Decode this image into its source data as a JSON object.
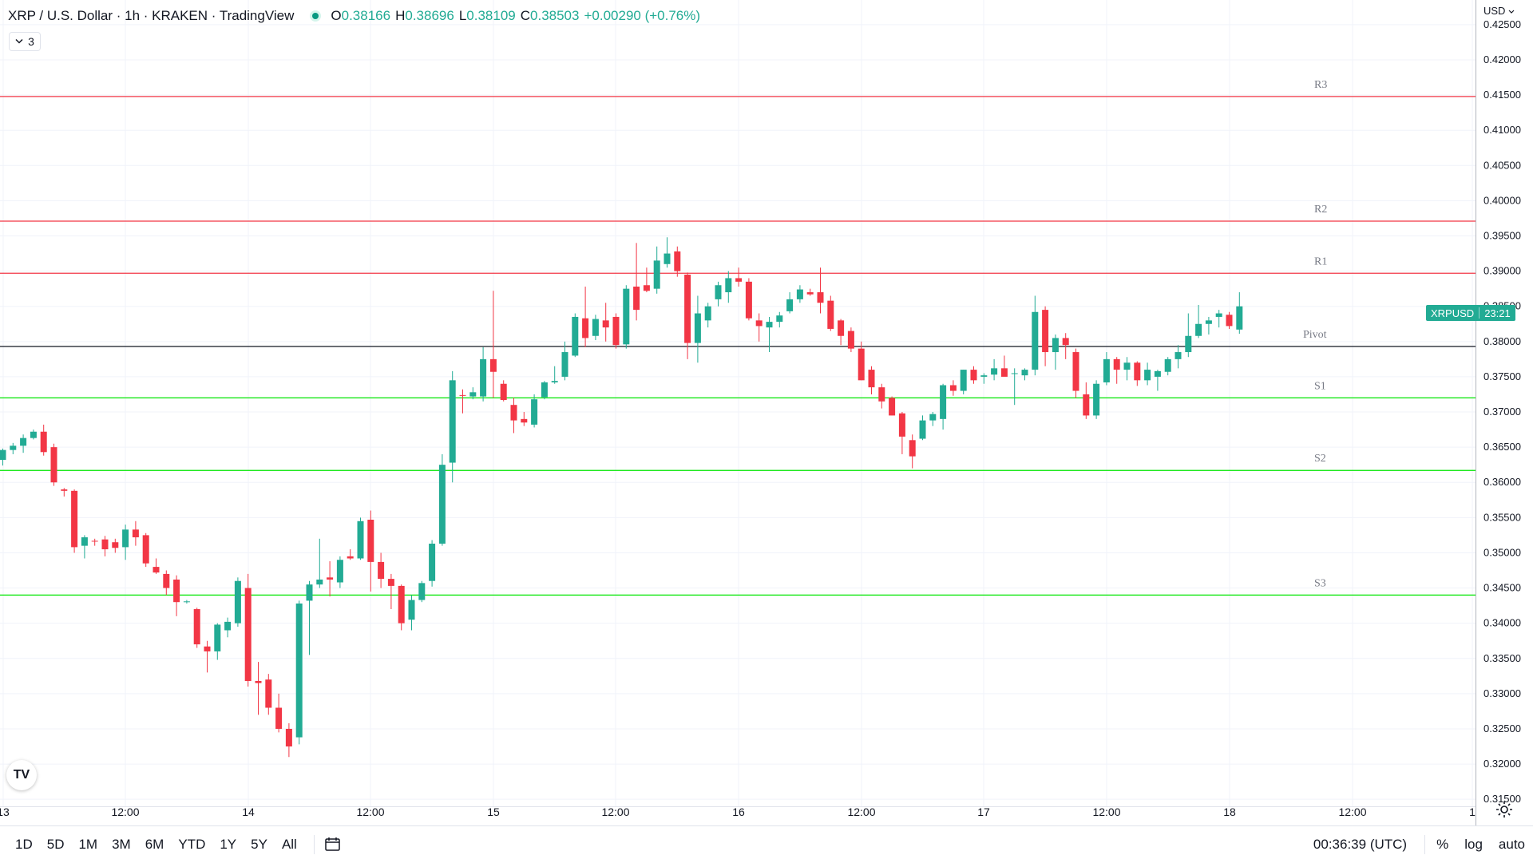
{
  "legend": {
    "symbol": "XRP / U.S. Dollar · 1h · KRAKEN · TradingView",
    "o_label": "O",
    "o_value": "0.38166",
    "h_label": "H",
    "h_value": "0.38696",
    "l_label": "L",
    "l_value": "0.38109",
    "c_label": "C",
    "c_value": "0.38503",
    "change": "+0.00290 (+0.76%)",
    "indicators_count": "3"
  },
  "price_scale": {
    "currency": "USD",
    "currency_icon": "chevron-down-icon"
  },
  "last_price_badge": {
    "symbol": "XRPUSD",
    "countdown": "23:21"
  },
  "colors": {
    "up": "#22ab94",
    "down": "#f23645",
    "grid": "#f0f3fa",
    "resistance": "#f23645",
    "support": "#00e600",
    "pivot": "#131722",
    "text": "#131722",
    "muted": "#787b86"
  },
  "chart_data": {
    "type": "candlestick",
    "symbol": "XRPUSD",
    "interval": "1h",
    "exchange": "KRAKEN",
    "y_axis": {
      "ylim": [
        0.314,
        0.4285
      ],
      "ticks": [
        "0.42500",
        "0.42000",
        "0.41500",
        "0.41000",
        "0.40500",
        "0.40000",
        "0.39500",
        "0.39000",
        "0.38500",
        "0.38000",
        "0.37500",
        "0.37000",
        "0.36500",
        "0.36000",
        "0.35500",
        "0.35000",
        "0.34500",
        "0.34000",
        "0.33500",
        "0.33000",
        "0.32500",
        "0.32000",
        "0.31500"
      ]
    },
    "x_axis": {
      "ticks": [
        "13",
        "12:00",
        "14",
        "12:00",
        "15",
        "12:00",
        "16",
        "12:00",
        "17",
        "12:00",
        "18",
        "12:00",
        "1"
      ]
    },
    "levels": [
      {
        "label": "R3",
        "value": 0.4148,
        "kind": "resistance"
      },
      {
        "label": "R2",
        "value": 0.3971,
        "kind": "resistance"
      },
      {
        "label": "R1",
        "value": 0.3897,
        "kind": "resistance"
      },
      {
        "label": "Pivot",
        "value": 0.3793,
        "kind": "pivot"
      },
      {
        "label": "S1",
        "value": 0.372,
        "kind": "support"
      },
      {
        "label": "S2",
        "value": 0.3617,
        "kind": "support"
      },
      {
        "label": "S3",
        "value": 0.344,
        "kind": "support"
      }
    ],
    "candles": [
      [
        0.3632,
        0.3648,
        0.3624,
        0.3646
      ],
      [
        0.3646,
        0.3656,
        0.364,
        0.3652
      ],
      [
        0.3652,
        0.3668,
        0.3642,
        0.3663
      ],
      [
        0.3663,
        0.3675,
        0.3661,
        0.3672
      ],
      [
        0.3672,
        0.3682,
        0.3638,
        0.3643
      ],
      [
        0.365,
        0.3655,
        0.3595,
        0.36
      ],
      [
        0.359,
        0.3592,
        0.358,
        0.3588
      ],
      [
        0.3588,
        0.359,
        0.35,
        0.3508
      ],
      [
        0.351,
        0.3525,
        0.3492,
        0.3522
      ],
      [
        0.3517,
        0.352,
        0.351,
        0.3516
      ],
      [
        0.3519,
        0.3524,
        0.3495,
        0.3505
      ],
      [
        0.3515,
        0.352,
        0.35,
        0.3507
      ],
      [
        0.3508,
        0.354,
        0.349,
        0.3533
      ],
      [
        0.3533,
        0.3545,
        0.351,
        0.3522
      ],
      [
        0.3525,
        0.3528,
        0.348,
        0.3485
      ],
      [
        0.348,
        0.3492,
        0.347,
        0.3472
      ],
      [
        0.347,
        0.3475,
        0.344,
        0.345
      ],
      [
        0.3462,
        0.3468,
        0.341,
        0.343
      ],
      [
        0.343,
        0.3433,
        0.3428,
        0.3431
      ],
      [
        0.342,
        0.3422,
        0.3365,
        0.337
      ],
      [
        0.3367,
        0.3375,
        0.333,
        0.336
      ],
      [
        0.336,
        0.34,
        0.3348,
        0.3398
      ],
      [
        0.339,
        0.3408,
        0.338,
        0.3402
      ],
      [
        0.34,
        0.3465,
        0.3395,
        0.346
      ],
      [
        0.345,
        0.347,
        0.331,
        0.3318
      ],
      [
        0.3318,
        0.3345,
        0.327,
        0.3315
      ],
      [
        0.332,
        0.3328,
        0.327,
        0.328
      ],
      [
        0.328,
        0.33,
        0.3245,
        0.325
      ],
      [
        0.325,
        0.3258,
        0.321,
        0.3225
      ],
      [
        0.3238,
        0.3432,
        0.3228,
        0.3428
      ],
      [
        0.3432,
        0.346,
        0.3355,
        0.3455
      ],
      [
        0.3455,
        0.352,
        0.345,
        0.3462
      ],
      [
        0.3465,
        0.3488,
        0.3438,
        0.3462
      ],
      [
        0.3458,
        0.3495,
        0.345,
        0.349
      ],
      [
        0.3495,
        0.3505,
        0.349,
        0.3492
      ],
      [
        0.3492,
        0.355,
        0.349,
        0.3545
      ],
      [
        0.3547,
        0.356,
        0.3445,
        0.3487
      ],
      [
        0.3487,
        0.35,
        0.345,
        0.3463
      ],
      [
        0.3463,
        0.347,
        0.342,
        0.3453
      ],
      [
        0.3453,
        0.3455,
        0.339,
        0.34
      ],
      [
        0.3405,
        0.344,
        0.339,
        0.3433
      ],
      [
        0.3433,
        0.346,
        0.343,
        0.3457
      ],
      [
        0.346,
        0.3518,
        0.3452,
        0.3513
      ],
      [
        0.3513,
        0.364,
        0.351,
        0.3625
      ],
      [
        0.3628,
        0.3758,
        0.36,
        0.3745
      ],
      [
        0.3724,
        0.3732,
        0.3698,
        0.3723
      ],
      [
        0.3722,
        0.3735,
        0.3718,
        0.3728
      ],
      [
        0.3722,
        0.3792,
        0.3715,
        0.3775
      ],
      [
        0.3775,
        0.3872,
        0.372,
        0.3757
      ],
      [
        0.374,
        0.3745,
        0.3715,
        0.3717
      ],
      [
        0.371,
        0.372,
        0.367,
        0.3688
      ],
      [
        0.369,
        0.37,
        0.368,
        0.3685
      ],
      [
        0.3682,
        0.3725,
        0.3678,
        0.3718
      ],
      [
        0.3721,
        0.3744,
        0.3718,
        0.3742
      ],
      [
        0.3742,
        0.3765,
        0.374,
        0.3744
      ],
      [
        0.375,
        0.38,
        0.3745,
        0.3785
      ],
      [
        0.378,
        0.384,
        0.3778,
        0.3835
      ],
      [
        0.3833,
        0.3878,
        0.3792,
        0.3805
      ],
      [
        0.3808,
        0.3838,
        0.3802,
        0.3832
      ],
      [
        0.383,
        0.3855,
        0.38,
        0.382
      ],
      [
        0.3835,
        0.384,
        0.379,
        0.3795
      ],
      [
        0.3796,
        0.388,
        0.379,
        0.3875
      ],
      [
        0.3878,
        0.394,
        0.383,
        0.3845
      ],
      [
        0.388,
        0.3905,
        0.387,
        0.3872
      ],
      [
        0.3875,
        0.3935,
        0.3868,
        0.3915
      ],
      [
        0.391,
        0.3948,
        0.3905,
        0.3925
      ],
      [
        0.3928,
        0.3935,
        0.3892,
        0.39
      ],
      [
        0.3895,
        0.3898,
        0.3775,
        0.3798
      ],
      [
        0.3798,
        0.3865,
        0.377,
        0.384
      ],
      [
        0.383,
        0.3855,
        0.382,
        0.385
      ],
      [
        0.386,
        0.3885,
        0.385,
        0.388
      ],
      [
        0.387,
        0.39,
        0.3855,
        0.389
      ],
      [
        0.389,
        0.3905,
        0.3878,
        0.3885
      ],
      [
        0.3885,
        0.389,
        0.383,
        0.3833
      ],
      [
        0.383,
        0.384,
        0.38,
        0.3822
      ],
      [
        0.382,
        0.3835,
        0.3785,
        0.3828
      ],
      [
        0.3828,
        0.3842,
        0.382,
        0.3837
      ],
      [
        0.3843,
        0.387,
        0.384,
        0.386
      ],
      [
        0.386,
        0.388,
        0.3855,
        0.3874
      ],
      [
        0.387,
        0.3875,
        0.3865,
        0.3867
      ],
      [
        0.387,
        0.3905,
        0.384,
        0.3855
      ],
      [
        0.3858,
        0.3865,
        0.3815,
        0.3818
      ],
      [
        0.383,
        0.3832,
        0.3795,
        0.3808
      ],
      [
        0.3815,
        0.382,
        0.3785,
        0.379
      ],
      [
        0.379,
        0.38,
        0.3745,
        0.3745
      ],
      [
        0.376,
        0.3765,
        0.3725,
        0.3735
      ],
      [
        0.3735,
        0.374,
        0.3705,
        0.3715
      ],
      [
        0.372,
        0.3722,
        0.3695,
        0.3695
      ],
      [
        0.3698,
        0.37,
        0.364,
        0.3665
      ],
      [
        0.366,
        0.3668,
        0.362,
        0.3637
      ],
      [
        0.3662,
        0.3695,
        0.366,
        0.3688
      ],
      [
        0.3688,
        0.37,
        0.368,
        0.3697
      ],
      [
        0.369,
        0.374,
        0.3675,
        0.3738
      ],
      [
        0.3738,
        0.3745,
        0.3723,
        0.373
      ],
      [
        0.373,
        0.376,
        0.3725,
        0.376
      ],
      [
        0.376,
        0.3765,
        0.374,
        0.3745
      ],
      [
        0.375,
        0.3755,
        0.374,
        0.3752
      ],
      [
        0.3753,
        0.3775,
        0.3745,
        0.3762
      ],
      [
        0.3762,
        0.378,
        0.3755,
        0.375
      ],
      [
        0.3755,
        0.3762,
        0.371,
        0.3755
      ],
      [
        0.3752,
        0.3762,
        0.3745,
        0.376
      ],
      [
        0.376,
        0.3865,
        0.3752,
        0.3842
      ],
      [
        0.3845,
        0.385,
        0.3765,
        0.3785
      ],
      [
        0.3785,
        0.381,
        0.376,
        0.3805
      ],
      [
        0.3805,
        0.3812,
        0.3775,
        0.3795
      ],
      [
        0.3785,
        0.379,
        0.372,
        0.373
      ],
      [
        0.3725,
        0.3742,
        0.369,
        0.3695
      ],
      [
        0.3695,
        0.3745,
        0.369,
        0.374
      ],
      [
        0.3742,
        0.3785,
        0.3738,
        0.3775
      ],
      [
        0.3775,
        0.3778,
        0.374,
        0.376
      ],
      [
        0.376,
        0.3778,
        0.3745,
        0.377
      ],
      [
        0.377,
        0.3772,
        0.3737,
        0.3745
      ],
      [
        0.3745,
        0.377,
        0.3738,
        0.376
      ],
      [
        0.375,
        0.376,
        0.373,
        0.3758
      ],
      [
        0.3757,
        0.3778,
        0.3752,
        0.3775
      ],
      [
        0.3775,
        0.3795,
        0.3762,
        0.3785
      ],
      [
        0.3785,
        0.384,
        0.3778,
        0.3808
      ],
      [
        0.3808,
        0.3852,
        0.3805,
        0.3825
      ],
      [
        0.3825,
        0.3835,
        0.381,
        0.383
      ],
      [
        0.3835,
        0.3845,
        0.382,
        0.384
      ],
      [
        0.3838,
        0.3842,
        0.3818,
        0.3822
      ],
      [
        0.3817,
        0.387,
        0.3811,
        0.385
      ]
    ]
  },
  "toolbar": {
    "ranges": [
      "1D",
      "5D",
      "1M",
      "3M",
      "6M",
      "YTD",
      "1Y",
      "5Y",
      "All"
    ],
    "clock": "00:36:39 (UTC)",
    "percent": "%",
    "log": "log",
    "auto": "auto",
    "calendar_icon": "calendar-icon",
    "settings_icon": "gear-icon"
  },
  "logo": "TV"
}
